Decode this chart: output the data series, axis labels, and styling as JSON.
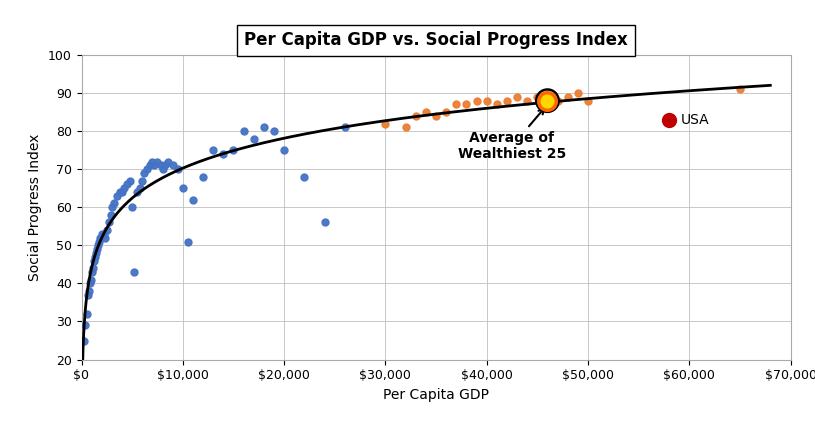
{
  "title": "Per Capita GDP vs. Social Progress Index",
  "xlabel": "Per Capita GDP",
  "ylabel": "Social Progress Index",
  "xlim": [
    0,
    70000
  ],
  "ylim": [
    20,
    100
  ],
  "yticks": [
    20,
    30,
    40,
    50,
    60,
    70,
    80,
    90,
    100
  ],
  "xticks": [
    0,
    10000,
    20000,
    30000,
    40000,
    50000,
    60000,
    70000
  ],
  "blue_points": [
    [
      200,
      25
    ],
    [
      300,
      29
    ],
    [
      500,
      32
    ],
    [
      600,
      37
    ],
    [
      700,
      38
    ],
    [
      800,
      40
    ],
    [
      900,
      41
    ],
    [
      1000,
      43
    ],
    [
      1100,
      44
    ],
    [
      1200,
      46
    ],
    [
      1300,
      47
    ],
    [
      1400,
      48
    ],
    [
      1500,
      49
    ],
    [
      1600,
      50
    ],
    [
      1700,
      51
    ],
    [
      1800,
      52
    ],
    [
      2000,
      53
    ],
    [
      2200,
      53
    ],
    [
      2300,
      52
    ],
    [
      2500,
      54
    ],
    [
      2700,
      56
    ],
    [
      2900,
      58
    ],
    [
      3000,
      60
    ],
    [
      3200,
      61
    ],
    [
      3500,
      63
    ],
    [
      3800,
      64
    ],
    [
      4000,
      64
    ],
    [
      4200,
      65
    ],
    [
      4500,
      66
    ],
    [
      4800,
      67
    ],
    [
      5000,
      60
    ],
    [
      5200,
      43
    ],
    [
      5500,
      64
    ],
    [
      5800,
      65
    ],
    [
      6000,
      67
    ],
    [
      6200,
      69
    ],
    [
      6500,
      70
    ],
    [
      6800,
      71
    ],
    [
      7000,
      72
    ],
    [
      7200,
      71
    ],
    [
      7500,
      72
    ],
    [
      7800,
      71
    ],
    [
      8000,
      70
    ],
    [
      8200,
      71
    ],
    [
      8500,
      72
    ],
    [
      9000,
      71
    ],
    [
      9500,
      70
    ],
    [
      10000,
      65
    ],
    [
      10500,
      51
    ],
    [
      11000,
      62
    ],
    [
      12000,
      68
    ],
    [
      13000,
      75
    ],
    [
      14000,
      74
    ],
    [
      15000,
      75
    ],
    [
      16000,
      80
    ],
    [
      17000,
      78
    ],
    [
      18000,
      81
    ],
    [
      19000,
      80
    ],
    [
      20000,
      75
    ],
    [
      22000,
      68
    ],
    [
      24000,
      56
    ],
    [
      26000,
      81
    ]
  ],
  "orange_points": [
    [
      30000,
      82
    ],
    [
      32000,
      81
    ],
    [
      33000,
      84
    ],
    [
      34000,
      85
    ],
    [
      35000,
      84
    ],
    [
      36000,
      85
    ],
    [
      37000,
      87
    ],
    [
      38000,
      87
    ],
    [
      39000,
      88
    ],
    [
      40000,
      88
    ],
    [
      41000,
      87
    ],
    [
      42000,
      88
    ],
    [
      43000,
      89
    ],
    [
      44000,
      88
    ],
    [
      45000,
      89
    ],
    [
      46000,
      89
    ],
    [
      47000,
      88
    ],
    [
      48000,
      89
    ],
    [
      49000,
      90
    ],
    [
      50000,
      88
    ],
    [
      65000,
      91
    ]
  ],
  "avg_point": [
    46000,
    88
  ],
  "usa_point": [
    58000,
    83
  ],
  "blue_color": "#4472C4",
  "orange_color": "#ED7D31",
  "avg_color_fill": "#FFD700",
  "avg_color_edge": "#FF6600",
  "usa_color": "#C00000",
  "curve_color": "#000000",
  "background_color": "#FFFFFF",
  "grid_color": "#BFBFBF",
  "title_fontsize": 12,
  "axis_label_fontsize": 10,
  "tick_fontsize": 9
}
